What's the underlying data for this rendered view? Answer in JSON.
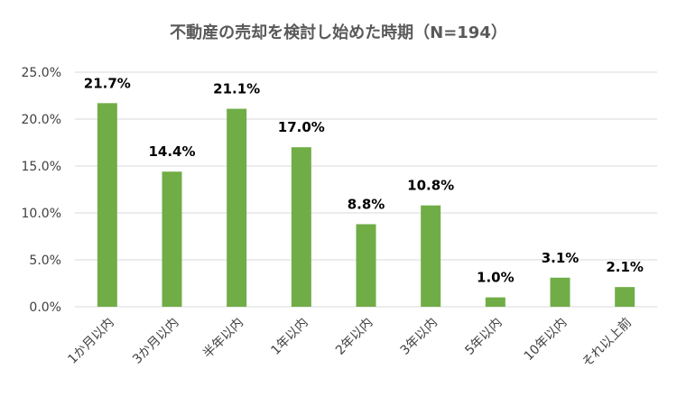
{
  "chart_data": {
    "type": "bar",
    "title": "不動産の売却を検討し始めた時期（N=194）",
    "categories": [
      "1か月以内",
      "3か月以内",
      "半年以内",
      "1年以内",
      "2年以内",
      "3年以内",
      "5年以内",
      "10年以内",
      "それ以上前"
    ],
    "values": [
      21.7,
      14.4,
      21.1,
      17.0,
      8.8,
      10.8,
      1.0,
      3.1,
      2.1
    ],
    "data_labels": [
      "21.7%",
      "14.4%",
      "21.1%",
      "17.0%",
      "8.8%",
      "10.8%",
      "1.0%",
      "3.1%",
      "2.1%"
    ],
    "y_ticks": [
      "0.0%",
      "5.0%",
      "10.0%",
      "15.0%",
      "20.0%",
      "25.0%"
    ],
    "ylim": [
      0,
      25
    ],
    "xlabel": "",
    "ylabel": "",
    "grid": true,
    "bar_color": "#70ad47",
    "grid_color": "#d9d9d9"
  }
}
